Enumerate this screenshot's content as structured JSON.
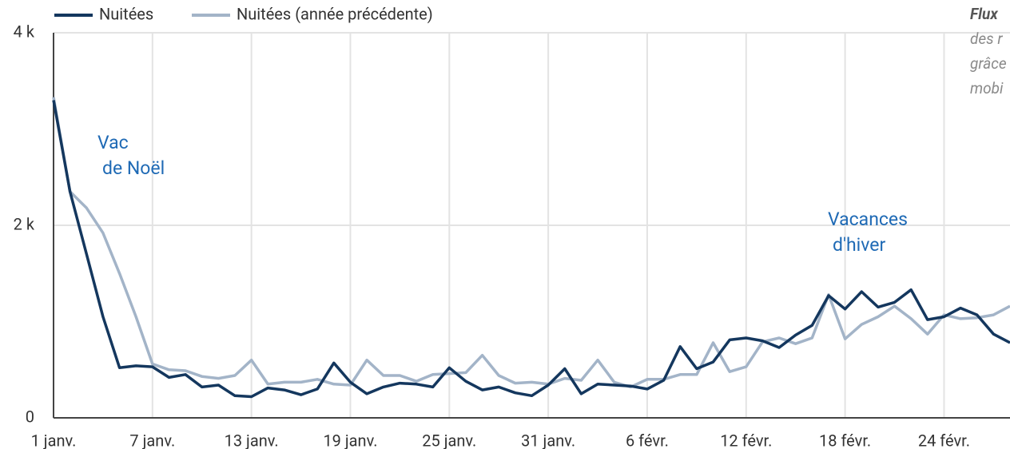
{
  "chart_data": {
    "type": "line",
    "categories": [
      "1 janv.",
      null,
      null,
      null,
      null,
      null,
      "7 janv.",
      null,
      null,
      null,
      null,
      null,
      "13 janv.",
      null,
      null,
      null,
      null,
      null,
      "19 janv.",
      null,
      null,
      null,
      null,
      null,
      "25 janv.",
      null,
      null,
      null,
      null,
      null,
      "31 janv.",
      null,
      null,
      null,
      null,
      null,
      "6 févr.",
      null,
      null,
      null,
      null,
      null,
      "12 févr.",
      null,
      null,
      null,
      null,
      null,
      "18 févr.",
      null,
      null,
      null,
      null,
      null,
      "24 févr.",
      null,
      null,
      null,
      null
    ],
    "series": [
      {
        "name": "Nuitées",
        "color": "#14375e",
        "values": [
          3300,
          2350,
          1700,
          1050,
          520,
          540,
          530,
          420,
          450,
          320,
          340,
          230,
          220,
          310,
          290,
          240,
          300,
          570,
          370,
          250,
          320,
          360,
          350,
          320,
          520,
          380,
          290,
          320,
          260,
          230,
          340,
          510,
          250,
          350,
          340,
          330,
          300,
          390,
          740,
          510,
          580,
          810,
          830,
          800,
          730,
          860,
          960,
          1270,
          1130,
          1310,
          1150,
          1200,
          1330,
          1020,
          1050,
          1140,
          1070,
          870,
          780
        ]
      },
      {
        "name": "Nuitées (année précédente)",
        "color": "#a3b4c8",
        "values": [
          3330,
          2350,
          2180,
          1920,
          1500,
          1050,
          560,
          500,
          490,
          430,
          410,
          440,
          600,
          350,
          370,
          370,
          400,
          350,
          340,
          600,
          440,
          440,
          380,
          450,
          460,
          470,
          650,
          440,
          360,
          370,
          350,
          410,
          390,
          600,
          370,
          320,
          400,
          400,
          450,
          450,
          780,
          480,
          530,
          790,
          830,
          770,
          830,
          1280,
          820,
          970,
          1050,
          1160,
          1030,
          870,
          1070,
          1030,
          1040,
          1070,
          1160
        ]
      }
    ],
    "ylim": [
      0,
      4000
    ],
    "yticks": [
      0,
      {
        "value": 2000,
        "label": "2 k"
      },
      {
        "value": 4000,
        "label": "4 k"
      }
    ],
    "grid": true,
    "legend": "top-left",
    "annotations": [
      {
        "lines": [
          "Vac",
          "de Noël"
        ]
      },
      {
        "lines": [
          "Vacances",
          "d'hiver"
        ]
      }
    ],
    "note": [
      "Flux",
      "des r",
      "grâce",
      "mobi"
    ]
  }
}
